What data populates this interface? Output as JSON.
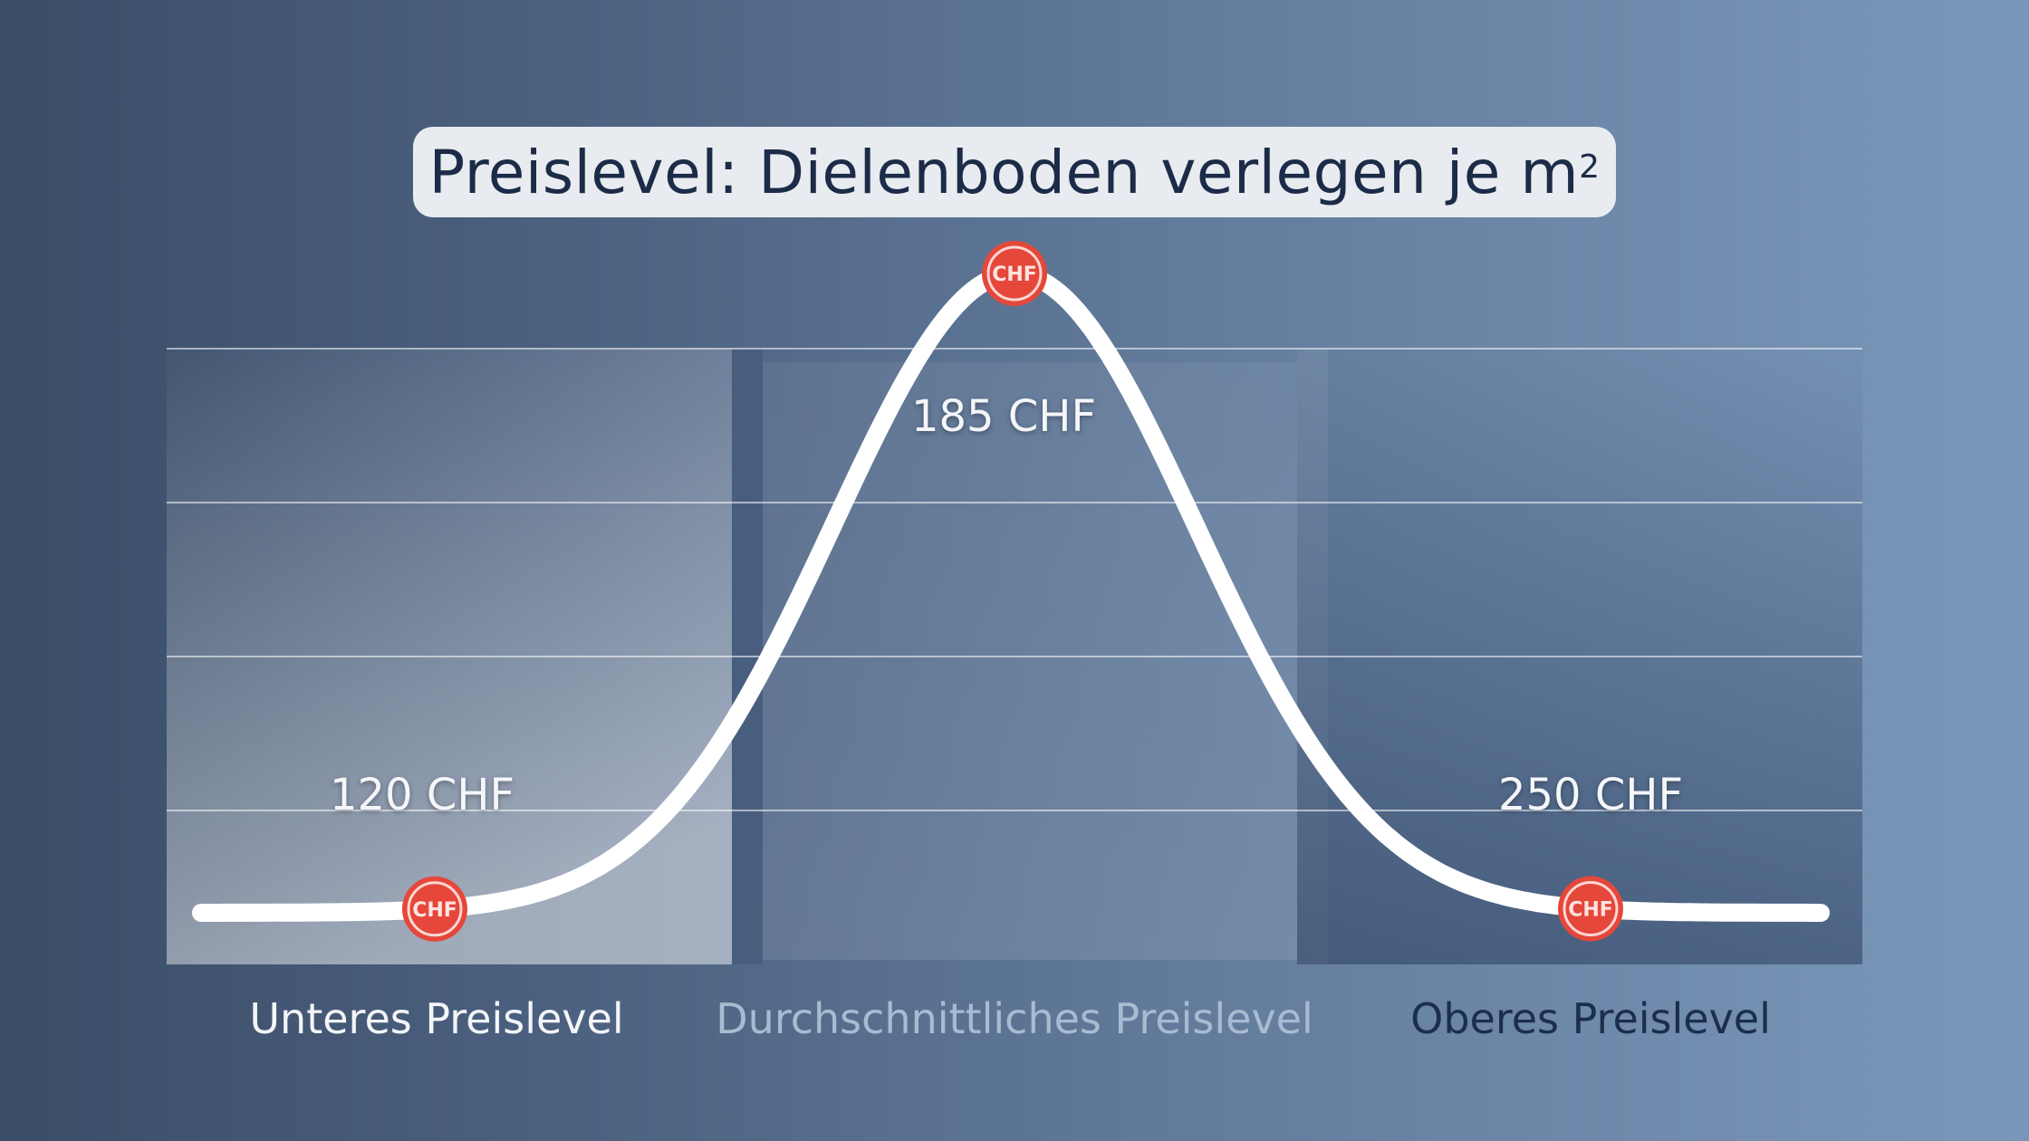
{
  "chart_data": {
    "type": "line",
    "title": "Preislevel: Dielenboden verlegen je m",
    "title_superscript": "2",
    "categories": [
      "Unteres Preislevel",
      "Durchschnittliches Preislevel",
      "Oberes Preislevel"
    ],
    "values": [
      120,
      185,
      250
    ],
    "value_labels": [
      "120 CHF",
      "185 CHF",
      "250 CHF"
    ],
    "marker_label": "CHF",
    "grid": true,
    "legend": "none",
    "colors": {
      "curve": "#ffffff",
      "marker": "#e5473b",
      "title_text": "#1c2b47",
      "title_box": "#e8ebf0"
    }
  }
}
